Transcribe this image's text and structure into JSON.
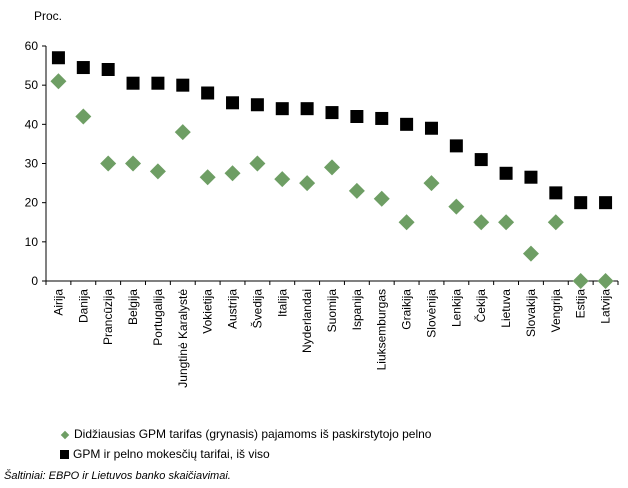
{
  "chart_data": {
    "type": "scatter",
    "ylabel": "Proc.",
    "ylim": [
      0,
      60
    ],
    "yticks": [
      0,
      10,
      20,
      30,
      40,
      50,
      60
    ],
    "grid": false,
    "legend_position": "bottom-left",
    "categories": [
      "Airija",
      "Danija",
      "Prancūzija",
      "Belgija",
      "Portugalija",
      "Jungtinė Karalystė",
      "Vokietija",
      "Austrija",
      "Švedija",
      "Italija",
      "Nyderlandai",
      "Suomija",
      "Ispanija",
      "Liuksemburgas",
      "Graikija",
      "Slovėnija",
      "Lenkija",
      "Čekija",
      "Lietuva",
      "Slovakija",
      "Vengrija",
      "Estija",
      "Latvija"
    ],
    "series": [
      {
        "name": "Didžiausias GPM tarifas (grynasis) pajamoms iš paskirstytojo pelno",
        "marker": "diamond",
        "color": "#6E9E64",
        "values": [
          51,
          42,
          30,
          30,
          28,
          38,
          26.5,
          27.5,
          30,
          26,
          25,
          29,
          23,
          21,
          15,
          25,
          19,
          15,
          15,
          7,
          15,
          0,
          0
        ]
      },
      {
        "name": "GPM ir pelno mokesčių tarifai, iš viso",
        "marker": "square",
        "color": "#000000",
        "values": [
          57,
          54.5,
          54,
          50.5,
          50.5,
          50,
          48,
          45.5,
          45,
          44,
          44,
          43,
          42,
          41.5,
          40,
          39,
          34.5,
          31,
          27.5,
          26.5,
          22.5,
          20,
          20
        ]
      }
    ]
  },
  "source_note": "Šaltiniai: EBPO ir Lietuvos banko skaičiavimai."
}
